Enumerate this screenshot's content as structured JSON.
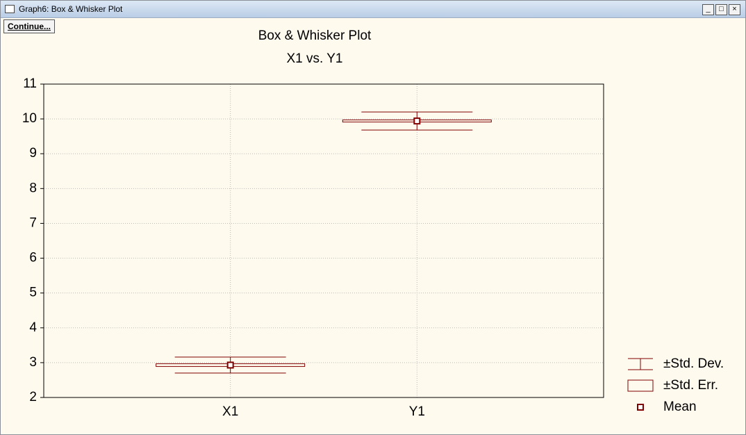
{
  "window": {
    "title": "Graph6: Box & Whisker Plot",
    "button": "Continue..."
  },
  "chart_data": {
    "type": "box",
    "title": "Box & Whisker Plot",
    "subtitle": "X1 vs. Y1",
    "categories": [
      "X1",
      "Y1"
    ],
    "means": [
      2.93,
      9.94
    ],
    "sd": [
      0.23,
      0.26
    ],
    "se": [
      0.04,
      0.03
    ],
    "color": "#800000",
    "ylim": [
      2,
      11
    ],
    "yticks": [
      2,
      3,
      4,
      5,
      6,
      7,
      8,
      9,
      10,
      11
    ],
    "grid": true,
    "legend": [
      "±Std. Dev.",
      "±Std. Err.",
      "Mean"
    ],
    "legend_position": "bottom-right"
  }
}
